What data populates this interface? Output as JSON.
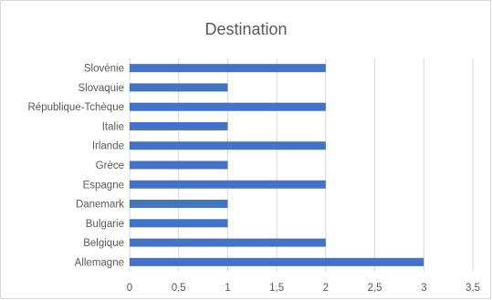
{
  "chart_data": {
    "type": "bar",
    "orientation": "horizontal",
    "title": "Destination",
    "categories": [
      "Slovénie",
      "Slovaquie",
      "République-Tchèque",
      "Italie",
      "Irlande",
      "Grèce",
      "Espagne",
      "Danemark",
      "Bulgarie",
      "Belgique",
      "Allemagne"
    ],
    "values": [
      2,
      1,
      2,
      1,
      2,
      1,
      2,
      1,
      1,
      2,
      3
    ],
    "xticks": [
      "0",
      "0,5",
      "1",
      "1,5",
      "2",
      "2,5",
      "3",
      "3,5"
    ],
    "xlim": [
      0,
      3.5
    ],
    "grid": true,
    "bar_color": "#4472c4",
    "grid_color": "#d9d9d9",
    "text_color": "#595959"
  }
}
